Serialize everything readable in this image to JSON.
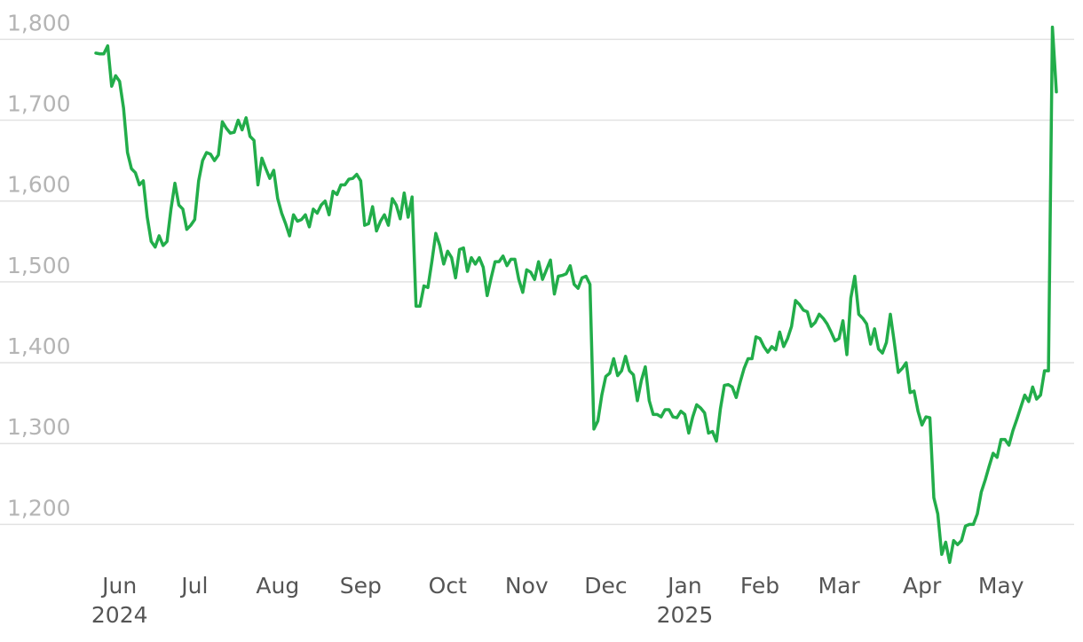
{
  "chart_data": {
    "type": "line",
    "color": "#22ad4a",
    "grid": true,
    "ylim": [
      1150,
      1830
    ],
    "yticks": [
      {
        "value": 1200,
        "label": "1,200"
      },
      {
        "value": 1300,
        "label": "1,300"
      },
      {
        "value": 1400,
        "label": "1,400"
      },
      {
        "value": 1500,
        "label": "1,500"
      },
      {
        "value": 1600,
        "label": "1,600"
      },
      {
        "value": 1700,
        "label": "1,700"
      },
      {
        "value": 1800,
        "label": "1,800"
      }
    ],
    "categories": [
      null,
      null,
      null,
      null,
      null,
      null,
      "Jun\n2024",
      null,
      null,
      null,
      null,
      null,
      null,
      null,
      null,
      null,
      null,
      null,
      null,
      null,
      null,
      null,
      null,
      null,
      null,
      "Jul",
      null,
      null,
      null,
      null,
      null,
      null,
      null,
      null,
      null,
      null,
      null,
      null,
      null,
      null,
      null,
      null,
      null,
      null,
      null,
      null,
      "Aug",
      null,
      null,
      null,
      null,
      null,
      null,
      null,
      null,
      null,
      null,
      null,
      null,
      null,
      null,
      null,
      null,
      null,
      null,
      null,
      null,
      "Sep",
      null,
      null,
      null,
      null,
      null,
      null,
      null,
      null,
      null,
      null,
      null,
      null,
      null,
      null,
      null,
      null,
      null,
      null,
      null,
      null,
      null,
      "Oct",
      null,
      null,
      null,
      null,
      null,
      null,
      null,
      null,
      null,
      null,
      null,
      null,
      null,
      null,
      null,
      null,
      null,
      null,
      null,
      "Nov",
      null,
      null,
      null,
      null,
      null,
      null,
      null,
      null,
      null,
      null,
      null,
      null,
      null,
      null,
      null,
      null,
      null,
      null,
      null,
      "Dec",
      null,
      null,
      null,
      null,
      null,
      null,
      null,
      null,
      null,
      null,
      null,
      null,
      null,
      null,
      null,
      null,
      null,
      null,
      null,
      "Jan\n2025",
      null,
      null,
      null,
      null,
      null,
      null,
      null,
      null,
      null,
      null,
      null,
      null,
      null,
      null,
      null,
      null,
      null,
      null,
      "Feb",
      null,
      null,
      null,
      null,
      null,
      null,
      null,
      null,
      null,
      null,
      null,
      null,
      null,
      null,
      null,
      null,
      null,
      null,
      null,
      "Mar",
      null,
      null,
      null,
      null,
      null,
      null,
      null,
      null,
      null,
      null,
      null,
      null,
      null,
      null,
      null,
      null,
      null,
      null,
      null,
      null,
      "Apr",
      null,
      null,
      null,
      null,
      null,
      null,
      null,
      null,
      null,
      null,
      null,
      null,
      null,
      null,
      null,
      null,
      null,
      null,
      null,
      "May",
      null,
      null,
      null,
      null,
      null,
      null,
      null,
      null,
      null,
      null,
      null,
      null,
      null,
      null
    ],
    "values": [
      1783,
      1782,
      1782,
      1792,
      1742,
      1755,
      1748,
      1715,
      1660,
      1640,
      1635,
      1620,
      1625,
      1580,
      1550,
      1543,
      1557,
      1545,
      1550,
      1590,
      1622,
      1595,
      1590,
      1565,
      1570,
      1577,
      1625,
      1650,
      1660,
      1658,
      1650,
      1657,
      1698,
      1690,
      1684,
      1685,
      1700,
      1688,
      1703,
      1680,
      1675,
      1620,
      1653,
      1640,
      1628,
      1638,
      1603,
      1585,
      1572,
      1557,
      1583,
      1575,
      1577,
      1583,
      1568,
      1590,
      1585,
      1595,
      1600,
      1583,
      1612,
      1608,
      1620,
      1620,
      1627,
      1628,
      1633,
      1625,
      1570,
      1572,
      1593,
      1563,
      1575,
      1583,
      1570,
      1603,
      1595,
      1578,
      1610,
      1580,
      1605,
      1470,
      1470,
      1495,
      1493,
      1525,
      1560,
      1545,
      1522,
      1538,
      1530,
      1505,
      1540,
      1542,
      1513,
      1530,
      1522,
      1530,
      1518,
      1483,
      1505,
      1525,
      1525,
      1532,
      1520,
      1528,
      1528,
      1503,
      1487,
      1515,
      1512,
      1503,
      1525,
      1503,
      1515,
      1527,
      1485,
      1507,
      1508,
      1510,
      1520,
      1497,
      1492,
      1505,
      1507,
      1497,
      1318,
      1328,
      1360,
      1383,
      1387,
      1405,
      1384,
      1390,
      1408,
      1390,
      1385,
      1353,
      1378,
      1395,
      1353,
      1336,
      1336,
      1333,
      1342,
      1342,
      1333,
      1332,
      1340,
      1336,
      1313,
      1333,
      1348,
      1344,
      1338,
      1313,
      1315,
      1303,
      1343,
      1372,
      1373,
      1370,
      1357,
      1376,
      1393,
      1405,
      1405,
      1432,
      1430,
      1420,
      1413,
      1420,
      1416,
      1438,
      1420,
      1430,
      1445,
      1477,
      1472,
      1465,
      1463,
      1445,
      1450,
      1460,
      1455,
      1448,
      1438,
      1427,
      1430,
      1452,
      1410,
      1480,
      1507,
      1460,
      1455,
      1448,
      1423,
      1442,
      1417,
      1412,
      1425,
      1460,
      1425,
      1388,
      1393,
      1400,
      1363,
      1365,
      1340,
      1323,
      1333,
      1332,
      1233,
      1213,
      1163,
      1178,
      1153,
      1180,
      1175,
      1180,
      1198,
      1200,
      1200,
      1213,
      1240,
      1255,
      1272,
      1288,
      1283,
      1305,
      1305,
      1298,
      1316,
      1330,
      1345,
      1360,
      1352,
      1370,
      1355,
      1360,
      1390,
      1390,
      1815,
      1735
    ]
  }
}
